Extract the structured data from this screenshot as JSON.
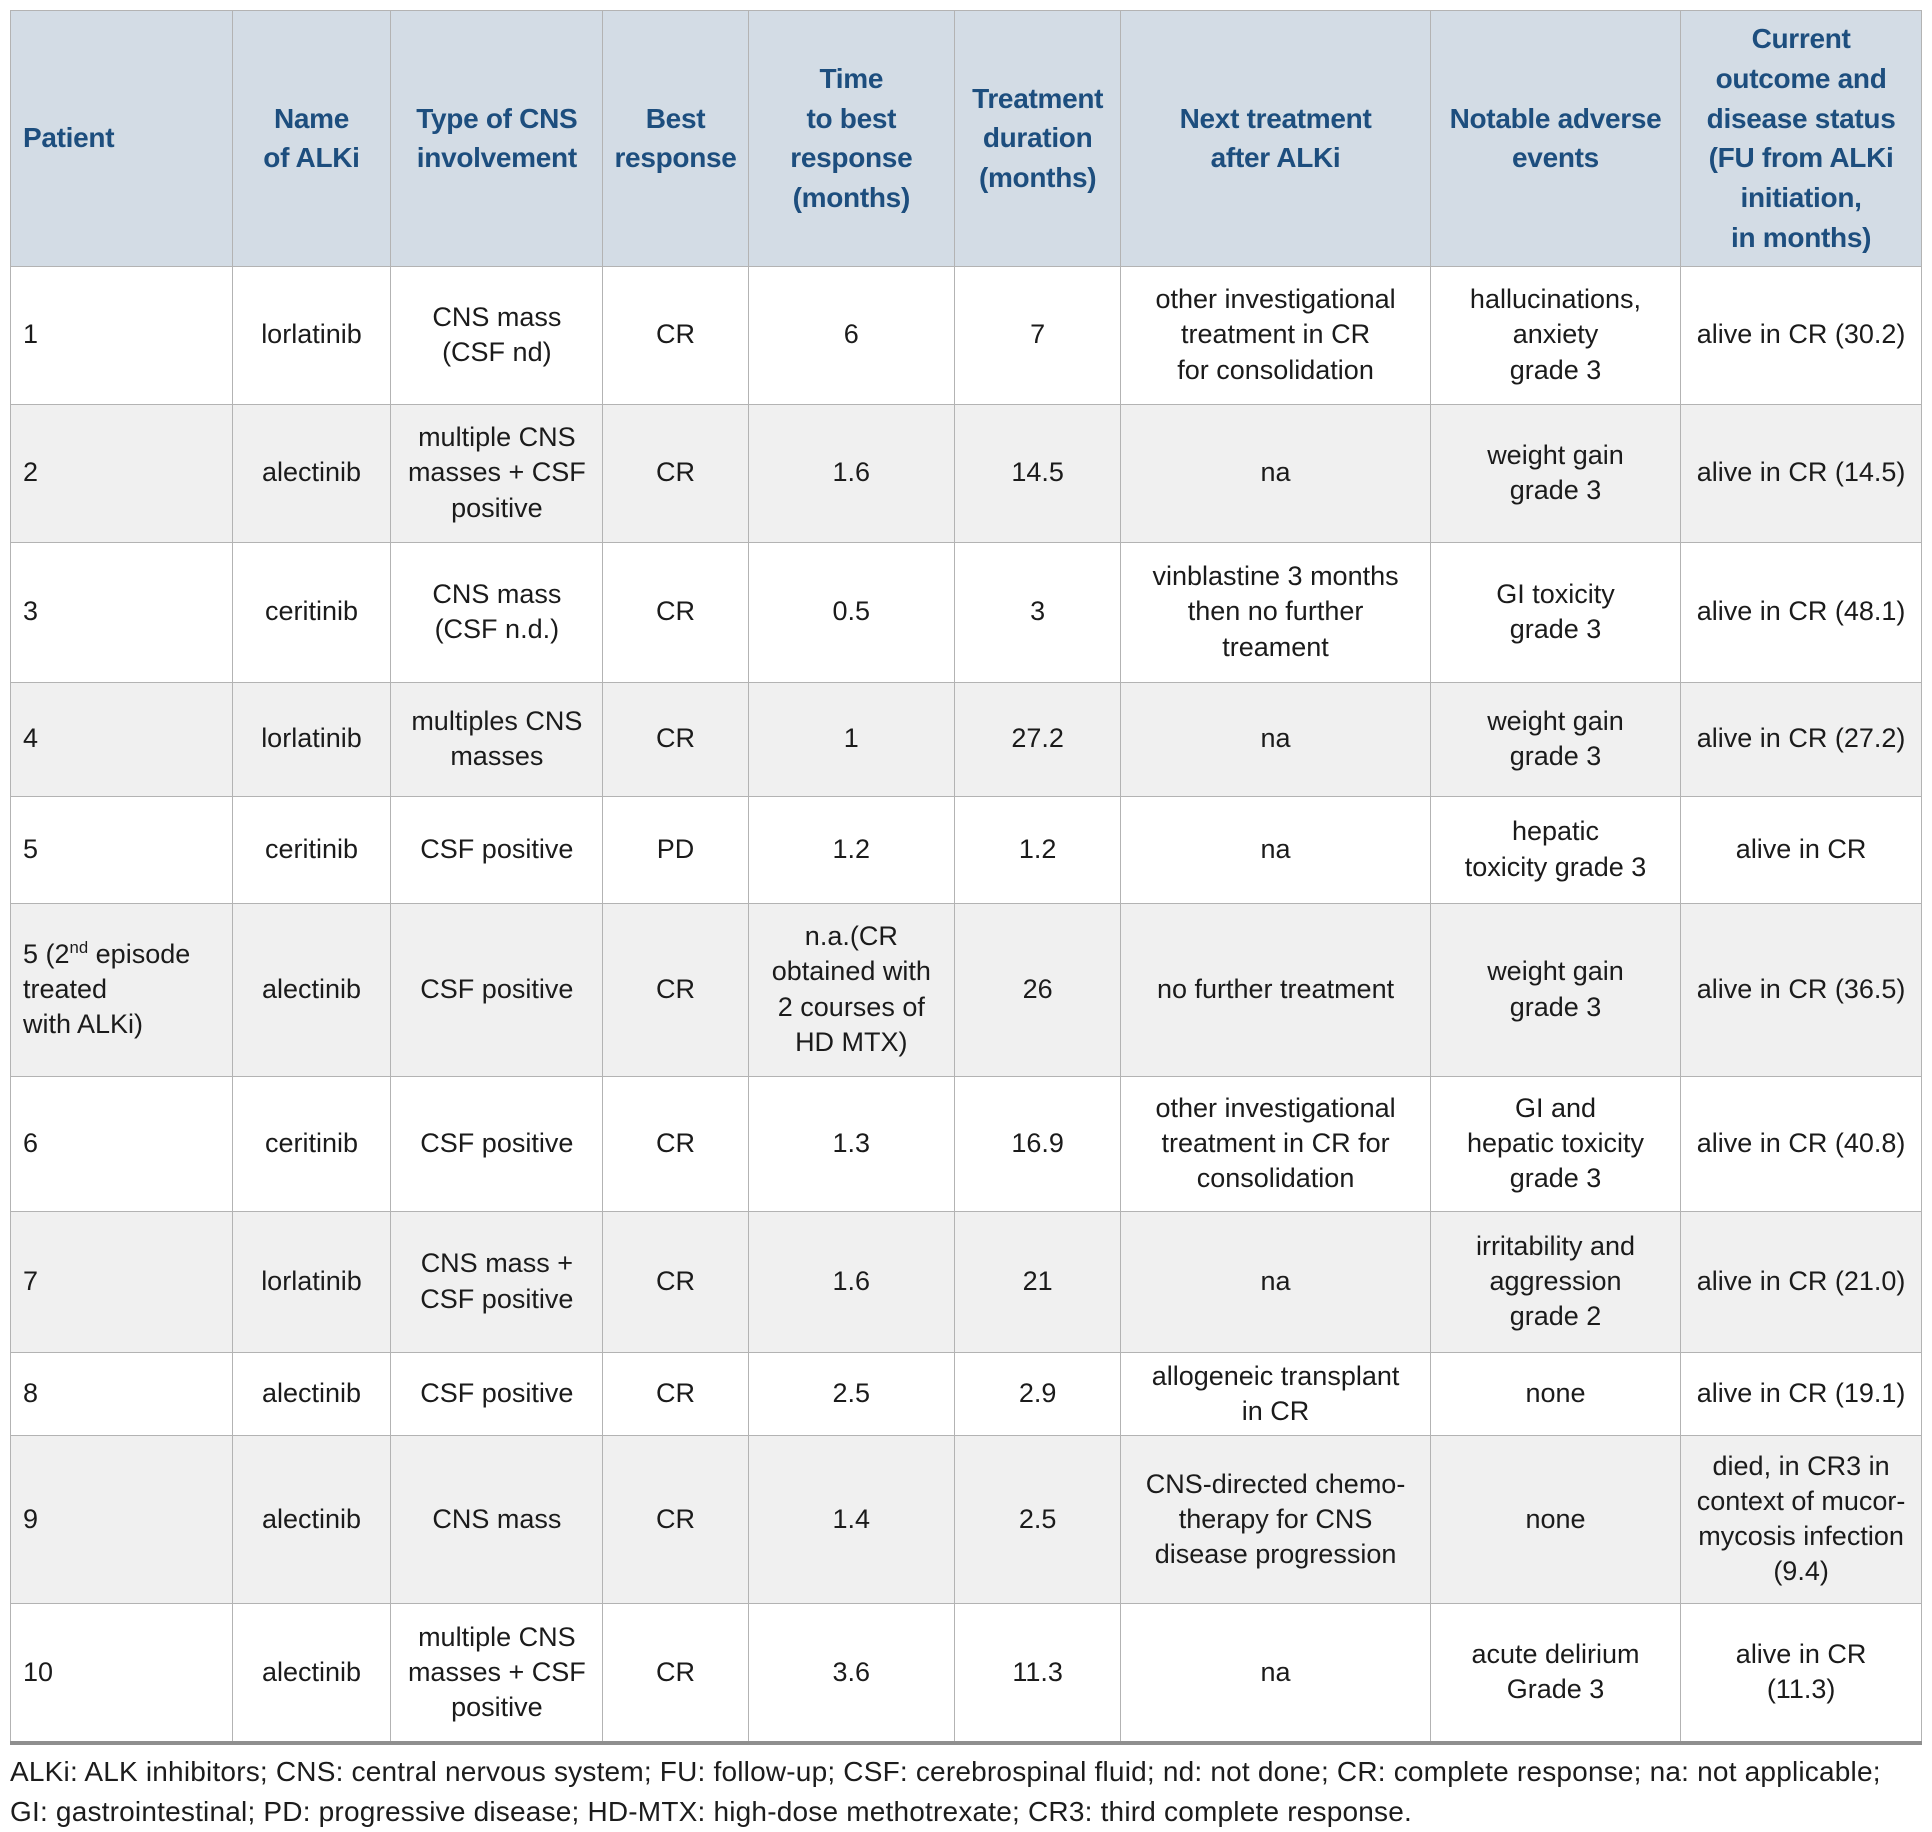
{
  "table": {
    "headers": [
      "Patient",
      "Name\nof ALKi",
      "Type of CNS\ninvolvement",
      "Best\nresponse",
      "Time\nto best\nresponse\n(months)",
      "Treatment\nduration\n(months)",
      "Next treatment\nafter ALKi",
      "Notable adverse\nevents",
      "Current\noutcome and\ndisease status\n(FU from ALKi\ninitiation,\nin months)"
    ],
    "rows": [
      {
        "patient": {
          "pre": "1",
          "sup": "",
          "post": ""
        },
        "alki": "lorlatinib",
        "cns": "CNS mass\n(CSF nd)",
        "best_response": "CR",
        "time_to_best": "6",
        "duration": "7",
        "next_treatment": "other investigational\ntreatment in CR\nfor consolidation",
        "adverse_events": "hallucinations,\nanxiety\ngrade 3",
        "outcome": "alive in CR (30.2)"
      },
      {
        "patient": {
          "pre": "2",
          "sup": "",
          "post": ""
        },
        "alki": "alectinib",
        "cns": "multiple CNS\nmasses + CSF\npositive",
        "best_response": "CR",
        "time_to_best": "1.6",
        "duration": "14.5",
        "next_treatment": "na",
        "adverse_events": "weight gain\ngrade 3",
        "outcome": "alive in CR (14.5)"
      },
      {
        "patient": {
          "pre": "3",
          "sup": "",
          "post": ""
        },
        "alki": "ceritinib",
        "cns": "CNS mass\n(CSF n.d.)",
        "best_response": "CR",
        "time_to_best": "0.5",
        "duration": "3",
        "next_treatment": "vinblastine 3 months\nthen no further\ntreament",
        "adverse_events": "GI toxicity\ngrade 3",
        "outcome": "alive in CR (48.1)"
      },
      {
        "patient": {
          "pre": "4",
          "sup": "",
          "post": ""
        },
        "alki": "lorlatinib",
        "cns": "multiples CNS\nmasses",
        "best_response": "CR",
        "time_to_best": "1",
        "duration": "27.2",
        "next_treatment": "na",
        "adverse_events": "weight gain\ngrade 3",
        "outcome": "alive in CR (27.2)"
      },
      {
        "patient": {
          "pre": "5",
          "sup": "",
          "post": ""
        },
        "alki": "ceritinib",
        "cns": "CSF positive",
        "best_response": "PD",
        "time_to_best": "1.2",
        "duration": "1.2",
        "next_treatment": "na",
        "adverse_events": "hepatic\ntoxicity grade 3",
        "outcome": "alive in CR"
      },
      {
        "patient": {
          "pre": "5 (2",
          "sup": "nd",
          "post": " episode\ntreated\nwith ALKi)"
        },
        "alki": "alectinib",
        "cns": "CSF positive",
        "best_response": "CR",
        "time_to_best": "n.a.(CR\nobtained with\n2 courses of\nHD MTX)",
        "duration": "26",
        "next_treatment": "no further treatment",
        "adverse_events": "weight gain\ngrade 3",
        "outcome": "alive in CR (36.5)"
      },
      {
        "patient": {
          "pre": "6",
          "sup": "",
          "post": ""
        },
        "alki": "ceritinib",
        "cns": "CSF positive",
        "best_response": "CR",
        "time_to_best": "1.3",
        "duration": "16.9",
        "next_treatment": "other investigational\ntreatment in CR for\nconsolidation",
        "adverse_events": "GI and\nhepatic toxicity\ngrade 3",
        "outcome": "alive in CR (40.8)"
      },
      {
        "patient": {
          "pre": "7",
          "sup": "",
          "post": ""
        },
        "alki": "lorlatinib",
        "cns": "CNS mass +\nCSF positive",
        "best_response": "CR",
        "time_to_best": "1.6",
        "duration": "21",
        "next_treatment": "na",
        "adverse_events": "irritability and\naggression\ngrade 2",
        "outcome": "alive in CR (21.0)"
      },
      {
        "patient": {
          "pre": "8",
          "sup": "",
          "post": ""
        },
        "alki": "alectinib",
        "cns": "CSF positive",
        "best_response": "CR",
        "time_to_best": "2.5",
        "duration": "2.9",
        "next_treatment": "allogeneic transplant\nin CR",
        "adverse_events": "none",
        "outcome": "alive in CR (19.1)"
      },
      {
        "patient": {
          "pre": "9",
          "sup": "",
          "post": ""
        },
        "alki": "alectinib",
        "cns": "CNS mass",
        "best_response": "CR",
        "time_to_best": "1.4",
        "duration": "2.5",
        "next_treatment": "CNS-directed chemo-\ntherapy for CNS\ndisease progression",
        "adverse_events": "none",
        "outcome": "died, in CR3 in\ncontext of mucor-\nmycosis infection\n(9.4)"
      },
      {
        "patient": {
          "pre": "10",
          "sup": "",
          "post": ""
        },
        "alki": "alectinib",
        "cns": "multiple CNS\nmasses + CSF\npositive",
        "best_response": "CR",
        "time_to_best": "3.6",
        "duration": "11.3",
        "next_treatment": "na",
        "adverse_events": "acute delirium\nGrade 3",
        "outcome": "alive in CR\n(11.3)"
      }
    ]
  },
  "footnote": "ALKi: ALK inhibitors; CNS: central nervous system; FU: follow-up; CSF: cerebrospinal fluid; nd: not done; CR: complete response; na: not applicable; GI: gastrointestinal; PD: progressive disease; HD-MTX: high-dose methotrexate; CR3: third complete response.",
  "colors": {
    "header_background": "#d3dce5",
    "header_text": "#1d4e7e",
    "row_stripe": "#f0f0f0",
    "cell_border": "#b3b3b3",
    "body_text": "#1b1b1b"
  }
}
